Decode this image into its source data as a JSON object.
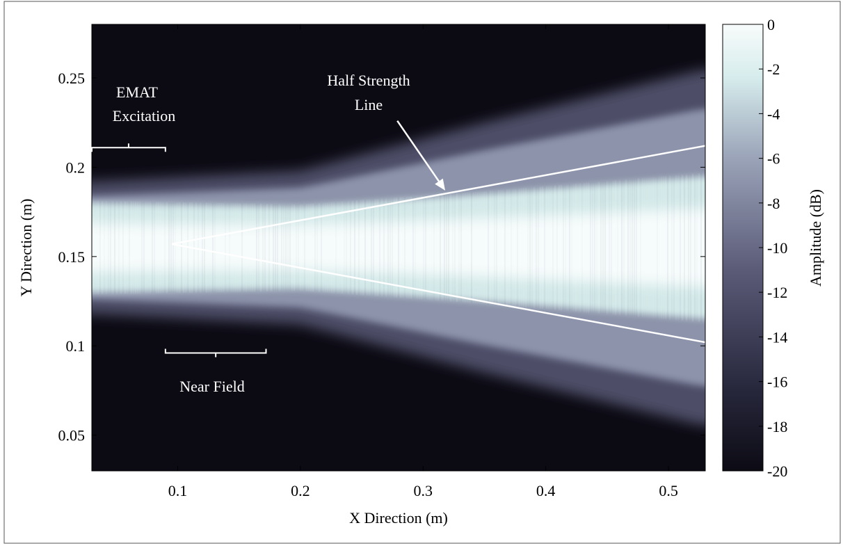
{
  "chart_data": {
    "type": "heatmap",
    "title": "",
    "xlabel": "X Direction (m)",
    "ylabel": "Y Direction (m)",
    "xlim": [
      0.03,
      0.53
    ],
    "ylim": [
      0.03,
      0.28
    ],
    "xticks": [
      {
        "value": 0.1,
        "label": "0.1"
      },
      {
        "value": 0.2,
        "label": "0.2"
      },
      {
        "value": 0.3,
        "label": "0.3"
      },
      {
        "value": 0.4,
        "label": "0.4"
      },
      {
        "value": 0.5,
        "label": "0.5"
      }
    ],
    "yticks": [
      {
        "value": 0.05,
        "label": "0.05"
      },
      {
        "value": 0.1,
        "label": "0.1"
      },
      {
        "value": 0.15,
        "label": "0.15"
      },
      {
        "value": 0.2,
        "label": "0.2"
      },
      {
        "value": 0.25,
        "label": "0.25"
      }
    ],
    "colorbar": {
      "label": "Amplitude (dB)",
      "range": [
        -20,
        0
      ],
      "ticks": [
        {
          "value": 0,
          "label": "0"
        },
        {
          "value": -2,
          "label": "-2"
        },
        {
          "value": -4,
          "label": "-4"
        },
        {
          "value": -6,
          "label": "-6"
        },
        {
          "value": -8,
          "label": "-8"
        },
        {
          "value": -10,
          "label": "-10"
        },
        {
          "value": -12,
          "label": "-12"
        },
        {
          "value": -14,
          "label": "-14"
        },
        {
          "value": -16,
          "label": "-16"
        },
        {
          "value": -18,
          "label": "-18"
        },
        {
          "value": -20,
          "label": "-20"
        }
      ],
      "colors": [
        "#0c0b14",
        "#2a2a40",
        "#5b5b78",
        "#9aa3b8",
        "#d6ecec",
        "#f8fbfb"
      ]
    },
    "beam": {
      "center_y": 0.155,
      "core_half_width": [
        {
          "x": 0.03,
          "half": 0.025
        },
        {
          "x": 0.2,
          "half": 0.023
        },
        {
          "x": 0.35,
          "half": 0.03
        },
        {
          "x": 0.53,
          "half": 0.04
        }
      ],
      "outer_half_width": [
        {
          "x": 0.03,
          "half": 0.037
        },
        {
          "x": 0.2,
          "half": 0.043
        },
        {
          "x": 0.35,
          "half": 0.07
        },
        {
          "x": 0.53,
          "half": 0.1
        }
      ]
    },
    "half_strength_lines": [
      {
        "x": [
          0.095,
          0.53
        ],
        "y": [
          0.157,
          0.212
        ]
      },
      {
        "x": [
          0.095,
          0.53
        ],
        "y": [
          0.157,
          0.102
        ]
      }
    ],
    "annotations": {
      "emat": {
        "line1": "EMAT",
        "line2": "Excitation",
        "bracket_x": [
          0.03,
          0.09
        ],
        "bracket_y": 0.211
      },
      "near_field": {
        "label": "Near Field",
        "bracket_x": [
          0.09,
          0.172
        ],
        "bracket_y": 0.096
      },
      "half_strength": {
        "line1": "Half Strength",
        "line2": "Line",
        "arrow_from": [
          0.279,
          0.226
        ],
        "arrow_to": [
          0.318,
          0.187
        ]
      }
    }
  }
}
